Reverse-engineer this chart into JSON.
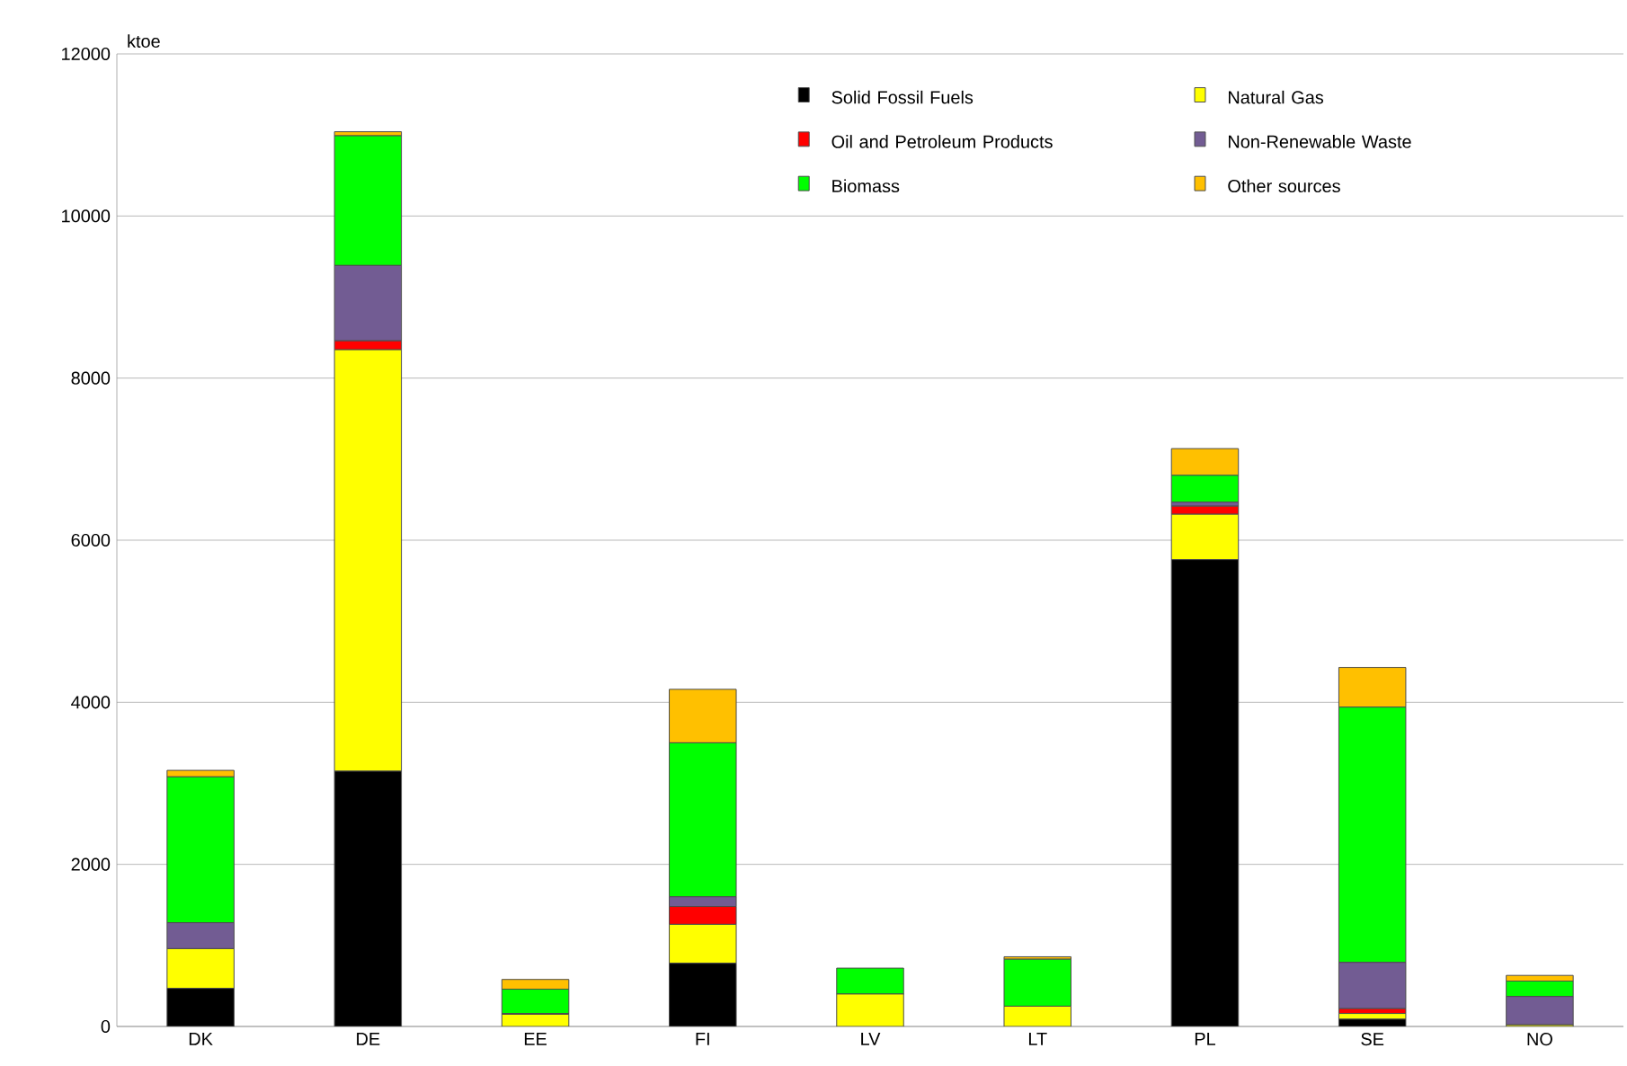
{
  "chart_data": {
    "type": "bar",
    "stacked": true,
    "ylabel": "ktoe",
    "categories": [
      "DK",
      "DE",
      "EE",
      "FI",
      "LV",
      "LT",
      "PL",
      "SE",
      "NO"
    ],
    "series": [
      {
        "name": "Solid Fossil Fuels",
        "color": "#000000",
        "values": [
          470,
          3150,
          0,
          780,
          0,
          0,
          5760,
          90,
          0
        ]
      },
      {
        "name": "Natural Gas",
        "color": "#ffff00",
        "values": [
          490,
          5200,
          150,
          480,
          400,
          250,
          560,
          70,
          20
        ]
      },
      {
        "name": "Oil and Petroleum Products",
        "color": "#ff0000",
        "values": [
          0,
          110,
          0,
          220,
          0,
          0,
          100,
          60,
          0
        ]
      },
      {
        "name": "Non-Renewable Waste",
        "color": "#725c93",
        "values": [
          320,
          930,
          10,
          120,
          0,
          0,
          50,
          570,
          350
        ]
      },
      {
        "name": "Biomass",
        "color": "#00ff00",
        "values": [
          1800,
          1600,
          300,
          1900,
          320,
          580,
          330,
          3150,
          190
        ]
      },
      {
        "name": "Other sources",
        "color": "#ffc000",
        "values": [
          80,
          50,
          120,
          660,
          0,
          30,
          330,
          490,
          70
        ]
      }
    ],
    "ylim": [
      0,
      12000
    ],
    "yticks": [
      0,
      2000,
      4000,
      6000,
      8000,
      10000,
      12000
    ],
    "grid": "y",
    "legend": "top right"
  }
}
